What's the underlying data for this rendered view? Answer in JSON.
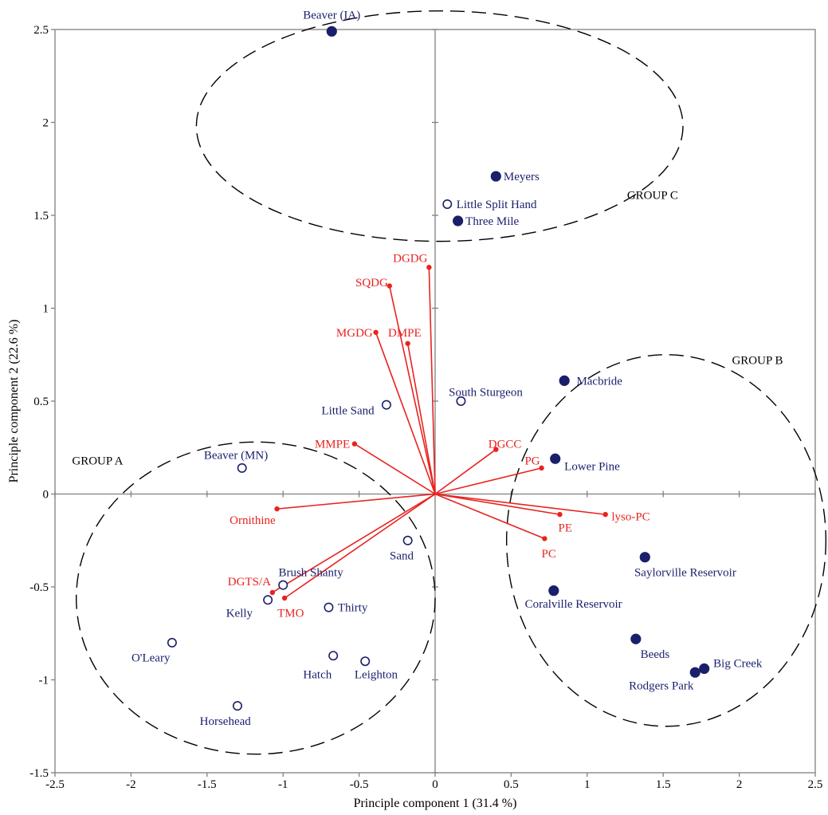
{
  "colors": {
    "site": "#1a1f6b",
    "vector": "#e8231f",
    "axis": "#808080",
    "text": "#000000"
  },
  "chart_data": {
    "type": "scatter",
    "title": "",
    "xlabel": "Principle component 1 (31.4 %)",
    "ylabel": "Principle component 2 (22.6 %)",
    "xlim": [
      -2.5,
      2.5
    ],
    "ylim": [
      -1.5,
      2.5
    ],
    "xticks": [
      -2.5,
      -2,
      -1.5,
      -1,
      -0.5,
      0,
      0.5,
      1,
      1.5,
      2,
      2.5
    ],
    "xtick_labels": [
      "-2.5",
      "-2",
      "-1.5",
      "-1",
      "-0.5",
      "0",
      "0.5",
      "1",
      "1.5",
      "2",
      "2.5"
    ],
    "yticks": [
      -1.5,
      -1,
      -0.5,
      0,
      0.5,
      1,
      1.5,
      2,
      2.5
    ],
    "ytick_labels": [
      "-1.5",
      "-1",
      "-0.5",
      "0",
      "0.5",
      "1",
      "1.5",
      "2",
      "2.5"
    ],
    "grid": false,
    "sites": [
      {
        "name": "Beaver (IA)",
        "x": -0.68,
        "y": 2.49,
        "filled": true,
        "anchor": "middle",
        "ldx": 0.0,
        "ldy": 0.09
      },
      {
        "name": "Meyers",
        "x": 0.4,
        "y": 1.71,
        "filled": true,
        "anchor": "start",
        "ldx": 0.05,
        "ldy": 0.0
      },
      {
        "name": "Little Split Hand",
        "x": 0.08,
        "y": 1.56,
        "filled": false,
        "anchor": "start",
        "ldx": 0.06,
        "ldy": 0.0
      },
      {
        "name": "Three Mile",
        "x": 0.15,
        "y": 1.47,
        "filled": true,
        "anchor": "start",
        "ldx": 0.05,
        "ldy": 0.0
      },
      {
        "name": "Macbride",
        "x": 0.85,
        "y": 0.61,
        "filled": true,
        "anchor": "start",
        "ldx": 0.08,
        "ldy": 0.0
      },
      {
        "name": "South Sturgeon",
        "x": 0.17,
        "y": 0.5,
        "filled": false,
        "anchor": "start",
        "ldx": -0.08,
        "ldy": 0.05
      },
      {
        "name": "Little Sand",
        "x": -0.32,
        "y": 0.48,
        "filled": false,
        "anchor": "end",
        "ldx": -0.08,
        "ldy": -0.03
      },
      {
        "name": "Beaver (MN)",
        "x": -1.27,
        "y": 0.14,
        "filled": false,
        "anchor": "middle",
        "ldx": -0.04,
        "ldy": 0.07
      },
      {
        "name": "Lower Pine",
        "x": 0.79,
        "y": 0.19,
        "filled": true,
        "anchor": "start",
        "ldx": 0.06,
        "ldy": -0.04
      },
      {
        "name": "Sand",
        "x": -0.18,
        "y": -0.25,
        "filled": false,
        "anchor": "middle",
        "ldx": -0.04,
        "ldy": -0.08
      },
      {
        "name": "Saylorville Reservoir",
        "x": 1.38,
        "y": -0.34,
        "filled": true,
        "anchor": "start",
        "ldx": -0.07,
        "ldy": -0.08
      },
      {
        "name": "Brush Shanty",
        "x": -1.0,
        "y": -0.49,
        "filled": false,
        "anchor": "start",
        "ldx": -0.03,
        "ldy": 0.07
      },
      {
        "name": "Coralville Reservoir",
        "x": 0.78,
        "y": -0.52,
        "filled": true,
        "anchor": "start",
        "ldx": -0.19,
        "ldy": -0.07
      },
      {
        "name": "Kelly",
        "x": -1.1,
        "y": -0.57,
        "filled": false,
        "anchor": "end",
        "ldx": -0.1,
        "ldy": -0.07
      },
      {
        "name": "Thirty",
        "x": -0.7,
        "y": -0.61,
        "filled": false,
        "anchor": "start",
        "ldx": 0.06,
        "ldy": 0.0
      },
      {
        "name": "O'Leary",
        "x": -1.73,
        "y": -0.8,
        "filled": false,
        "anchor": "middle",
        "ldx": -0.14,
        "ldy": -0.08
      },
      {
        "name": "Beeds",
        "x": 1.32,
        "y": -0.78,
        "filled": true,
        "anchor": "start",
        "ldx": 0.03,
        "ldy": -0.08
      },
      {
        "name": "Hatch",
        "x": -0.67,
        "y": -0.87,
        "filled": false,
        "anchor": "end",
        "ldx": -0.01,
        "ldy": -0.1
      },
      {
        "name": "Leighton",
        "x": -0.46,
        "y": -0.9,
        "filled": false,
        "anchor": "start",
        "ldx": -0.07,
        "ldy": -0.07
      },
      {
        "name": "Big Creek",
        "x": 1.77,
        "y": -0.94,
        "filled": true,
        "anchor": "start",
        "ldx": 0.06,
        "ldy": 0.03
      },
      {
        "name": "Rodgers Park",
        "x": 1.71,
        "y": -0.96,
        "filled": true,
        "anchor": "end",
        "ldx": -0.01,
        "ldy": -0.07
      },
      {
        "name": "Horsehead",
        "x": -1.3,
        "y": -1.14,
        "filled": false,
        "anchor": "middle",
        "ldx": -0.08,
        "ldy": -0.08
      }
    ],
    "vectors": [
      {
        "name": "DGDG",
        "x": -0.04,
        "y": 1.22,
        "anchor": "end",
        "ldx": -0.01,
        "ldy": 0.05
      },
      {
        "name": "SQDG",
        "x": -0.3,
        "y": 1.12,
        "anchor": "end",
        "ldx": -0.01,
        "ldy": 0.02
      },
      {
        "name": "MGDG",
        "x": -0.39,
        "y": 0.87,
        "anchor": "end",
        "ldx": -0.02,
        "ldy": 0.0
      },
      {
        "name": "DMPE",
        "x": -0.18,
        "y": 0.81,
        "anchor": "middle",
        "ldx": -0.02,
        "ldy": 0.06
      },
      {
        "name": "MMPE",
        "x": -0.53,
        "y": 0.27,
        "anchor": "end",
        "ldx": -0.03,
        "ldy": 0.0
      },
      {
        "name": "DGCC",
        "x": 0.4,
        "y": 0.24,
        "anchor": "start",
        "ldx": -0.05,
        "ldy": 0.03
      },
      {
        "name": "PG",
        "x": 0.7,
        "y": 0.14,
        "anchor": "end",
        "ldx": -0.01,
        "ldy": 0.04
      },
      {
        "name": "lyso-PC",
        "x": 1.12,
        "y": -0.11,
        "anchor": "start",
        "ldx": 0.04,
        "ldy": -0.01
      },
      {
        "name": "PE",
        "x": 0.82,
        "y": -0.11,
        "anchor": "start",
        "ldx": -0.01,
        "ldy": -0.07
      },
      {
        "name": "PC",
        "x": 0.72,
        "y": -0.24,
        "anchor": "start",
        "ldx": -0.02,
        "ldy": -0.08
      },
      {
        "name": "Ornithine",
        "x": -1.04,
        "y": -0.08,
        "anchor": "end",
        "ldx": -0.01,
        "ldy": -0.06
      },
      {
        "name": "DGTS/A",
        "x": -1.07,
        "y": -0.53,
        "anchor": "end",
        "ldx": -0.01,
        "ldy": 0.06
      },
      {
        "name": "TMO",
        "x": -0.99,
        "y": -0.56,
        "anchor": "middle",
        "ldx": 0.04,
        "ldy": -0.08
      }
    ],
    "groups": [
      {
        "name": "GROUP A",
        "cx": -1.18,
        "cy": -0.56,
        "rx": 1.18,
        "ry": 0.84,
        "lx": -2.22,
        "ly": 0.18
      },
      {
        "name": "GROUP B",
        "cx": 1.52,
        "cy": -0.25,
        "rx": 1.05,
        "ry": 1.0,
        "lx": 2.12,
        "ly": 0.72
      },
      {
        "name": "GROUP C",
        "cx": 0.03,
        "cy": 1.98,
        "rx": 1.6,
        "ry": 0.62,
        "lx": 1.43,
        "ly": 1.61
      }
    ]
  }
}
